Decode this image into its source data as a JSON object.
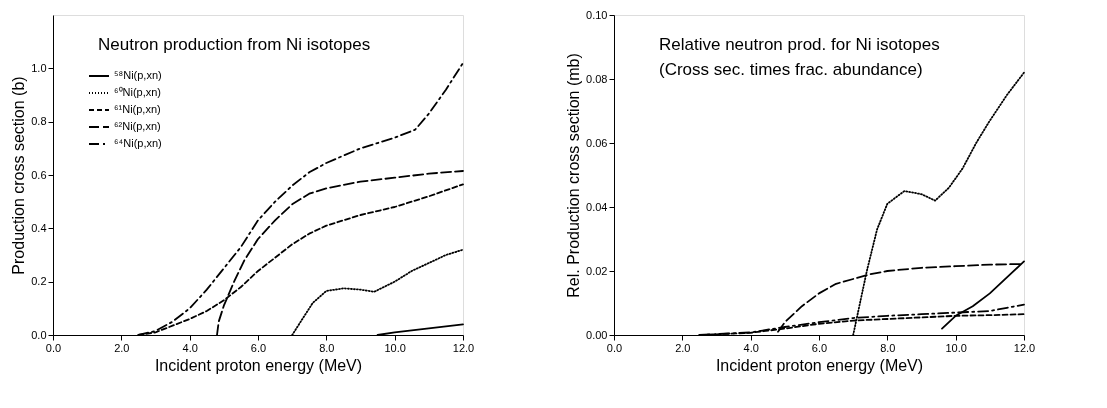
{
  "chart_data": [
    {
      "type": "line",
      "title": "Neutron production from Ni isotopes",
      "xlabel": "Incident proton energy (MeV)",
      "ylabel": "Production cross section (b)",
      "xlim": [
        0,
        12
      ],
      "xticks": [
        {
          "value": 0,
          "label": "0.0"
        },
        {
          "value": 2,
          "label": "2.0"
        },
        {
          "value": 4,
          "label": "4.0"
        },
        {
          "value": 6,
          "label": "6.0"
        },
        {
          "value": 8,
          "label": "8.0"
        },
        {
          "value": 10,
          "label": "10.0"
        },
        {
          "value": 12,
          "label": "12.0"
        }
      ],
      "ylim": [
        0,
        1.2
      ],
      "yticks": [
        {
          "value": 0,
          "label": "0.0"
        },
        0.2,
        0.4,
        0.6,
        0.8,
        {
          "value": 1,
          "label": "1.0"
        }
      ],
      "legend": "top left",
      "grid": false,
      "series": [
        {
          "name": "⁵⁸Ni(p,xn)",
          "color": "#000000",
          "line_style": "solid",
          "x": [
            9.5,
            10.0,
            11.0,
            12.0
          ],
          "values": [
            0,
            0.01,
            0.025,
            0.04
          ]
        },
        {
          "name": "⁶⁰Ni(p,xn)",
          "color": "#000000",
          "line_style": "dotted",
          "x": [
            7.0,
            7.3,
            7.6,
            8.0,
            8.5,
            9.0,
            9.4,
            10.0,
            10.5,
            11.0,
            11.5,
            12.0
          ],
          "values": [
            0,
            0.06,
            0.12,
            0.165,
            0.175,
            0.17,
            0.162,
            0.2,
            0.24,
            0.27,
            0.3,
            0.32
          ]
        },
        {
          "name": "⁶¹Ni(p,xn)",
          "color": "#000000",
          "line_style": "dashed",
          "x": [
            2.5,
            3.0,
            3.5,
            4.0,
            4.5,
            5.0,
            5.5,
            6.0,
            6.5,
            7.0,
            7.5,
            8.0,
            9.0,
            10.0,
            11.0,
            12.0
          ],
          "values": [
            0,
            0.01,
            0.035,
            0.06,
            0.09,
            0.13,
            0.18,
            0.24,
            0.29,
            0.34,
            0.38,
            0.41,
            0.45,
            0.48,
            0.52,
            0.565
          ]
        },
        {
          "name": "⁶²Ni(p,xn)",
          "color": "#000000",
          "line_style": "dashed",
          "x": [
            4.8,
            4.85,
            5.0,
            5.3,
            5.6,
            6.0,
            6.5,
            7.0,
            7.5,
            8.0,
            9.0,
            10.0,
            11.0,
            12.0
          ],
          "values": [
            0,
            0.05,
            0.11,
            0.2,
            0.28,
            0.36,
            0.43,
            0.49,
            0.53,
            0.55,
            0.575,
            0.59,
            0.605,
            0.615
          ]
        },
        {
          "name": "⁶⁴Ni(p,xn)",
          "color": "#000000",
          "line_style": "dashed",
          "x": [
            2.5,
            3.0,
            3.5,
            4.0,
            4.5,
            5.0,
            5.5,
            6.0,
            6.5,
            7.0,
            7.5,
            8.0,
            9.0,
            10.0,
            10.6,
            11.0,
            11.5,
            12.0
          ],
          "values": [
            0,
            0.015,
            0.05,
            0.1,
            0.17,
            0.25,
            0.33,
            0.43,
            0.5,
            0.56,
            0.61,
            0.645,
            0.7,
            0.74,
            0.77,
            0.83,
            0.92,
            1.02
          ]
        }
      ]
    },
    {
      "type": "line",
      "title": "Relative neutron prod. for Ni isotopes",
      "subtitle": "(Cross sec. times frac. abundance)",
      "xlabel": "Incident proton energy (MeV)",
      "ylabel": "Rel. Production cross section (mb)",
      "xlim": [
        0,
        12
      ],
      "xticks": [
        {
          "value": 0,
          "label": "0.0"
        },
        {
          "value": 2,
          "label": "2.0"
        },
        {
          "value": 4,
          "label": "4.0"
        },
        {
          "value": 6,
          "label": "6.0"
        },
        {
          "value": 8,
          "label": "8.0"
        },
        {
          "value": 10,
          "label": "10.0"
        },
        {
          "value": 12,
          "label": "12.0"
        }
      ],
      "ylim": [
        0,
        0.1
      ],
      "yticks": [
        {
          "value": 0,
          "label": "0.00"
        },
        {
          "value": 0.02,
          "label": "0.02"
        },
        {
          "value": 0.04,
          "label": "0.04"
        },
        {
          "value": 0.06,
          "label": "0.06"
        },
        {
          "value": 0.08,
          "label": "0.08"
        },
        {
          "value": 0.1,
          "label": "0.10"
        }
      ],
      "legend": "top left",
      "grid": false,
      "series": [
        {
          "name": "⁵⁸Ni(p,xn)",
          "color": "#000000",
          "line_style": "solid",
          "x": [
            9.6,
            10.0,
            10.5,
            11.0,
            11.5,
            12.0
          ],
          "values": [
            0.002,
            0.006,
            0.009,
            0.013,
            0.018,
            0.023
          ]
        },
        {
          "name": "⁶⁰Ni(p,xn)",
          "color": "#000000",
          "line_style": "dotted",
          "x": [
            7.0,
            7.2,
            7.4,
            7.7,
            8.0,
            8.5,
            9.0,
            9.4,
            9.8,
            10.2,
            10.6,
            11.0,
            11.5,
            12.0
          ],
          "values": [
            0,
            0.01,
            0.02,
            0.033,
            0.041,
            0.045,
            0.044,
            0.042,
            0.046,
            0.052,
            0.06,
            0.067,
            0.075,
            0.082
          ]
        },
        {
          "name": "⁶¹Ni(p,xn)",
          "color": "#000000",
          "line_style": "dashed",
          "x": [
            2.5,
            4.0,
            5.0,
            6.0,
            7.0,
            8.0,
            9.0,
            10.0,
            11.0,
            12.0
          ],
          "values": [
            0,
            0.0007,
            0.002,
            0.0035,
            0.0045,
            0.005,
            0.0055,
            0.006,
            0.0062,
            0.0065
          ]
        },
        {
          "name": "⁶²Ni(p,xn)",
          "color": "#000000",
          "line_style": "dashed",
          "x": [
            4.8,
            5.0,
            5.5,
            6.0,
            6.5,
            7.0,
            7.5,
            8.0,
            9.0,
            10.0,
            11.0,
            12.0
          ],
          "values": [
            0.001,
            0.004,
            0.009,
            0.013,
            0.016,
            0.0175,
            0.019,
            0.02,
            0.021,
            0.0215,
            0.022,
            0.0222
          ]
        },
        {
          "name": "⁶⁴Ni(p,xn)",
          "color": "#000000",
          "line_style": "dashed",
          "x": [
            2.5,
            4.0,
            5.0,
            6.0,
            7.0,
            8.0,
            9.0,
            10.0,
            11.0,
            11.5,
            12.0
          ],
          "values": [
            0,
            0.0008,
            0.0025,
            0.004,
            0.0053,
            0.006,
            0.0065,
            0.007,
            0.0075,
            0.0085,
            0.0095
          ]
        }
      ]
    }
  ]
}
